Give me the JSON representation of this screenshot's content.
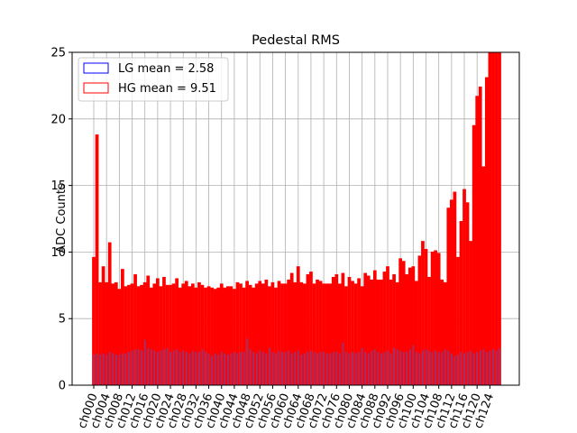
{
  "chart_data": {
    "type": "bar",
    "title": "Pedestal RMS",
    "xlabel": "",
    "ylabel": "ADC Counts",
    "ylim": [
      0,
      25
    ],
    "yticks": [
      0,
      5,
      10,
      15,
      20,
      25
    ],
    "grid": true,
    "legend_position": "top-left",
    "colors": {
      "lg": "#0000ff",
      "hg": "#ff0000",
      "grid": "#b0b0b0"
    },
    "legend": [
      {
        "label": "LG mean = 2.58",
        "color": "#0000ff"
      },
      {
        "label": "HG mean = 9.51",
        "color": "#ff0000"
      }
    ],
    "categories": [
      "ch000",
      "ch001",
      "ch002",
      "ch003",
      "ch004",
      "ch005",
      "ch006",
      "ch007",
      "ch008",
      "ch009",
      "ch010",
      "ch011",
      "ch012",
      "ch013",
      "ch014",
      "ch015",
      "ch016",
      "ch017",
      "ch018",
      "ch019",
      "ch020",
      "ch021",
      "ch022",
      "ch023",
      "ch024",
      "ch025",
      "ch026",
      "ch027",
      "ch028",
      "ch029",
      "ch030",
      "ch031",
      "ch032",
      "ch033",
      "ch034",
      "ch035",
      "ch036",
      "ch037",
      "ch038",
      "ch039",
      "ch040",
      "ch041",
      "ch042",
      "ch043",
      "ch044",
      "ch045",
      "ch046",
      "ch047",
      "ch048",
      "ch049",
      "ch050",
      "ch051",
      "ch052",
      "ch053",
      "ch054",
      "ch055",
      "ch056",
      "ch057",
      "ch058",
      "ch059",
      "ch060",
      "ch061",
      "ch062",
      "ch063",
      "ch064",
      "ch065",
      "ch066",
      "ch067",
      "ch068",
      "ch069",
      "ch070",
      "ch071",
      "ch072",
      "ch073",
      "ch074",
      "ch075",
      "ch076",
      "ch077",
      "ch078",
      "ch079",
      "ch080",
      "ch081",
      "ch082",
      "ch083",
      "ch084",
      "ch085",
      "ch086",
      "ch087",
      "ch088",
      "ch089",
      "ch090",
      "ch091",
      "ch092",
      "ch093",
      "ch094",
      "ch095",
      "ch096",
      "ch097",
      "ch098",
      "ch099",
      "ch100",
      "ch101",
      "ch102",
      "ch103",
      "ch104",
      "ch105",
      "ch106",
      "ch107",
      "ch108",
      "ch109",
      "ch110",
      "ch111",
      "ch112",
      "ch113",
      "ch114",
      "ch115",
      "ch116",
      "ch117",
      "ch118",
      "ch119",
      "ch120",
      "ch121",
      "ch122",
      "ch123",
      "ch124",
      "ch125",
      "ch126",
      "ch127"
    ],
    "tick_labels": [
      "ch000",
      "ch004",
      "ch008",
      "ch012",
      "ch016",
      "ch020",
      "ch024",
      "ch028",
      "ch032",
      "ch036",
      "ch040",
      "ch044",
      "ch048",
      "ch052",
      "ch056",
      "ch060",
      "ch064",
      "ch068",
      "ch072",
      "ch076",
      "ch080",
      "ch084",
      "ch088",
      "ch092",
      "ch096",
      "ch100",
      "ch104",
      "ch108",
      "ch112",
      "ch116",
      "ch120",
      "ch124"
    ],
    "series": [
      {
        "name": "HG mean = 9.51",
        "values": [
          9.6,
          18.8,
          7.7,
          8.9,
          7.7,
          10.7,
          7.6,
          7.7,
          7.2,
          8.7,
          7.4,
          7.5,
          7.6,
          8.3,
          7.4,
          7.5,
          7.7,
          8.2,
          7.3,
          7.6,
          8.0,
          7.4,
          8.1,
          7.5,
          7.5,
          7.6,
          8.0,
          7.3,
          7.6,
          7.8,
          7.4,
          7.6,
          7.3,
          7.7,
          7.5,
          7.3,
          7.4,
          7.3,
          7.2,
          7.3,
          7.6,
          7.3,
          7.4,
          7.4,
          7.2,
          7.7,
          7.6,
          7.3,
          7.8,
          7.5,
          7.3,
          7.6,
          7.8,
          7.6,
          7.9,
          7.4,
          7.7,
          7.3,
          7.8,
          7.6,
          7.6,
          7.9,
          8.4,
          7.7,
          8.9,
          7.7,
          7.6,
          8.3,
          8.5,
          7.6,
          7.9,
          7.8,
          7.6,
          7.6,
          7.6,
          8.1,
          8.3,
          7.6,
          8.4,
          7.4,
          8.1,
          7.8,
          7.6,
          8.0,
          7.4,
          8.4,
          8.2,
          7.9,
          8.6,
          7.9,
          7.9,
          8.5,
          8.9,
          7.9,
          8.3,
          7.7,
          9.5,
          9.3,
          8.3,
          8.8,
          8.9,
          7.8,
          9.7,
          10.8,
          10.2,
          8.1,
          10.0,
          10.1,
          9.9,
          7.9,
          7.7,
          13.3,
          13.9,
          14.5,
          9.6,
          12.3,
          14.7,
          13.7,
          10.8,
          19.5,
          21.7,
          22.4,
          16.4,
          23.1,
          25.5,
          25.5,
          25.5,
          25.5
        ]
      },
      {
        "name": "LG mean = 2.58",
        "values": [
          2.3,
          2.4,
          2.3,
          2.4,
          2.3,
          2.5,
          2.4,
          2.3,
          2.3,
          2.4,
          2.4,
          2.5,
          2.6,
          2.7,
          2.7,
          2.6,
          3.4,
          2.8,
          2.7,
          2.6,
          2.5,
          2.6,
          2.7,
          2.8,
          2.5,
          2.6,
          2.7,
          2.5,
          2.6,
          2.5,
          2.4,
          2.6,
          2.5,
          2.5,
          2.7,
          2.5,
          2.4,
          2.2,
          2.4,
          2.3,
          2.5,
          2.4,
          2.3,
          2.4,
          2.5,
          2.4,
          2.5,
          2.5,
          3.5,
          2.7,
          2.5,
          2.4,
          2.6,
          2.5,
          2.4,
          2.8,
          2.5,
          2.4,
          2.6,
          2.5,
          2.5,
          2.6,
          2.4,
          2.5,
          2.6,
          2.3,
          2.4,
          2.5,
          2.6,
          2.5,
          2.4,
          2.5,
          2.5,
          2.4,
          2.4,
          2.5,
          2.5,
          2.4,
          3.2,
          2.5,
          2.4,
          2.5,
          2.4,
          2.5,
          2.8,
          2.5,
          2.4,
          2.6,
          2.7,
          2.5,
          2.4,
          2.5,
          2.6,
          2.4,
          2.8,
          2.7,
          2.6,
          2.5,
          2.5,
          2.7,
          3.0,
          2.5,
          2.4,
          2.6,
          2.7,
          2.6,
          2.5,
          2.6,
          2.5,
          2.5,
          2.7,
          2.6,
          2.4,
          2.2,
          2.3,
          2.5,
          2.4,
          2.5,
          2.6,
          2.4,
          2.5,
          2.6,
          2.7,
          2.5,
          2.6,
          2.7,
          2.6,
          2.8
        ]
      }
    ]
  }
}
